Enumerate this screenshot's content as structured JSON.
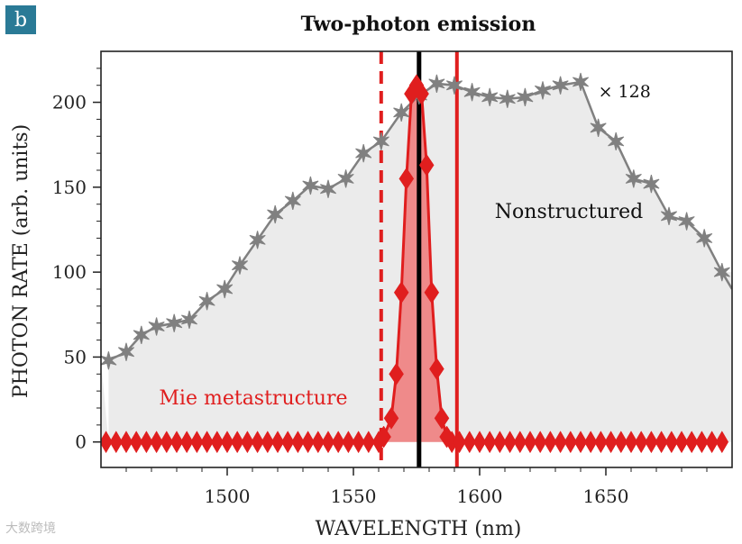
{
  "panel_label": "b",
  "watermark": "大数跨境",
  "colors": {
    "gray_series": "#808080",
    "red_series": "#e01e1e",
    "fill_gray": "#ebebeb",
    "fill_red": "#ef8a8a",
    "badge": "#2a7a96"
  },
  "chart_data": {
    "type": "line",
    "title": "Two-photon emission",
    "xlabel": "WAVELENGTH (nm)",
    "ylabel": "PHOTON RATE (arb. units)",
    "xlim": [
      1450,
      1700
    ],
    "ylim": [
      -15,
      230
    ],
    "xticks": [
      1500,
      1550,
      1600,
      1650
    ],
    "yticks": [
      0,
      50,
      100,
      150,
      200
    ],
    "grid": false,
    "annotations": [
      {
        "text": "× 128",
        "x": 1647,
        "y": 203
      },
      {
        "text": "Nonstructured",
        "x": 1606,
        "y": 132
      },
      {
        "text": "Mie metastructure",
        "x": 1473,
        "y": 22
      }
    ],
    "vlines": [
      {
        "name": "pump-center",
        "x": 1576,
        "style": "solid",
        "color": "#000000"
      },
      {
        "name": "band-left",
        "x": 1561,
        "style": "dashed",
        "color": "#e01e1e"
      },
      {
        "name": "band-right",
        "x": 1591,
        "style": "solid",
        "color": "#e01e1e"
      }
    ],
    "series": [
      {
        "name": "Nonstructured (×128)",
        "marker": "star",
        "x": [
          1453,
          1460,
          1466,
          1472,
          1479,
          1485,
          1492,
          1499,
          1505,
          1512,
          1519,
          1526,
          1533,
          1540,
          1547,
          1554,
          1561,
          1569,
          1576,
          1583,
          1590,
          1597,
          1604,
          1611,
          1618,
          1625,
          1632,
          1640,
          1647,
          1654,
          1661,
          1668,
          1675,
          1682,
          1689,
          1696
        ],
        "y": [
          48,
          53,
          63,
          68,
          70,
          72,
          83,
          90,
          104,
          119,
          134,
          142,
          151,
          149,
          155,
          170,
          177,
          194,
          204,
          211,
          210,
          206,
          203,
          202,
          203,
          207,
          210,
          212,
          185,
          177,
          155,
          152,
          133,
          130,
          120,
          100
        ]
      },
      {
        "name": "Mie metastructure",
        "marker": "diamond",
        "x": [
          1452,
          1456,
          1460,
          1464,
          1468,
          1472,
          1476,
          1480,
          1484,
          1488,
          1492,
          1496,
          1500,
          1504,
          1508,
          1512,
          1516,
          1520,
          1524,
          1528,
          1532,
          1536,
          1540,
          1544,
          1548,
          1552,
          1556,
          1560,
          1562,
          1565,
          1567,
          1569,
          1571,
          1573,
          1575,
          1577,
          1579,
          1581,
          1583,
          1585,
          1587,
          1589,
          1592,
          1596,
          1600,
          1604,
          1608,
          1612,
          1616,
          1620,
          1624,
          1628,
          1632,
          1636,
          1640,
          1644,
          1648,
          1652,
          1656,
          1660,
          1664,
          1668,
          1672,
          1676,
          1680,
          1684,
          1688,
          1692,
          1696
        ],
        "y": [
          0,
          0,
          0,
          0,
          0,
          0,
          0,
          0,
          0,
          0,
          0,
          0,
          0,
          0,
          0,
          0,
          0,
          0,
          0,
          0,
          0,
          0,
          0,
          0,
          0,
          0,
          0,
          0,
          3,
          14,
          40,
          88,
          155,
          205,
          210,
          205,
          163,
          88,
          43,
          14,
          3,
          0,
          0,
          0,
          0,
          0,
          0,
          0,
          0,
          0,
          0,
          0,
          0,
          0,
          0,
          0,
          0,
          0,
          0,
          0,
          0,
          0,
          0,
          0,
          0,
          0,
          0,
          0,
          0
        ]
      }
    ]
  }
}
